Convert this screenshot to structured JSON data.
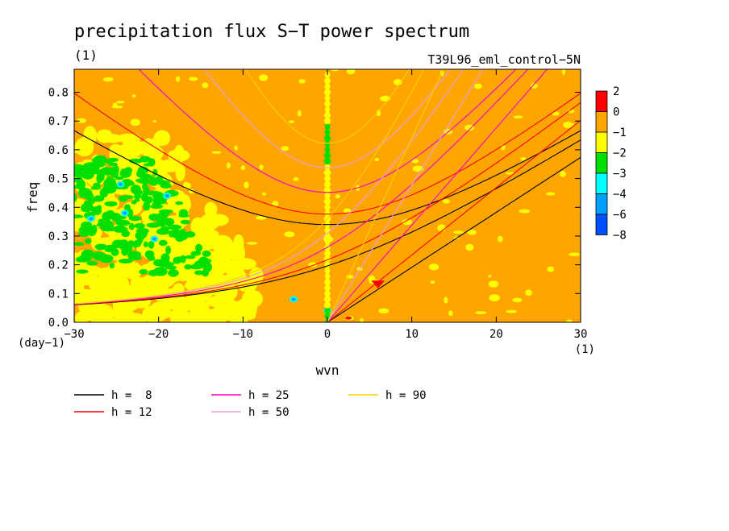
{
  "title": "precipitation flux S−T power spectrum",
  "subtitle_unit": "(1)",
  "experiment": "T39L96_eml_control−5N",
  "chart_data": {
    "type": "heatmap",
    "title": "precipitation flux S−T power spectrum",
    "xlabel": "wvn",
    "ylabel": "freq",
    "x_unit": "(1)",
    "y_unit": "(day−1)",
    "xlim": [
      -30,
      30
    ],
    "ylim": [
      0,
      0.88
    ],
    "x_ticks": [
      -30,
      -20,
      -10,
      0,
      10,
      20,
      30
    ],
    "x_tick_labels": [
      "−30",
      "−20",
      "−10",
      "0",
      "10",
      "20",
      "30"
    ],
    "y_ticks": [
      0,
      0.1,
      0.2,
      0.3,
      0.4,
      0.5,
      0.6,
      0.7,
      0.8
    ],
    "y_tick_labels": [
      "0.0",
      "0.1",
      "0.2",
      "0.3",
      "0.4",
      "0.5",
      "0.6",
      "0.7",
      "0.8"
    ],
    "colorbar": {
      "levels": [
        2,
        0,
        -1,
        -2,
        -3,
        -4,
        -6,
        -8
      ],
      "level_labels": [
        "2",
        "0",
        "−1",
        "−2",
        "−3",
        "−4",
        "−6",
        "−8"
      ],
      "colors": [
        "#ff0000",
        "#ffa500",
        "#ffff00",
        "#00e000",
        "#00ffff",
        "#00a0ff",
        "#0050ff"
      ]
    },
    "dispersion_curves": [
      {
        "label": "h =  8",
        "h": 8,
        "color": "#000000"
      },
      {
        "label": "h = 12",
        "h": 12,
        "color": "#ff0000"
      },
      {
        "label": "h = 25",
        "h": 25,
        "color": "#ff00c0"
      },
      {
        "label": "h = 50",
        "h": 50,
        "color": "#e0a0e0"
      },
      {
        "label": "h = 90",
        "h": 90,
        "color": "#ffd000"
      }
    ],
    "features": {
      "background_level_range": "0 to −1",
      "low_power_region": "wvn −30 to −10, freq 0.0 to 0.65",
      "zero_wavenumber_band": "wvn 0, freq 0.0 to 0.88",
      "max_patch": {
        "wvn": 6,
        "freq": 0.13,
        "level": "2"
      }
    }
  }
}
